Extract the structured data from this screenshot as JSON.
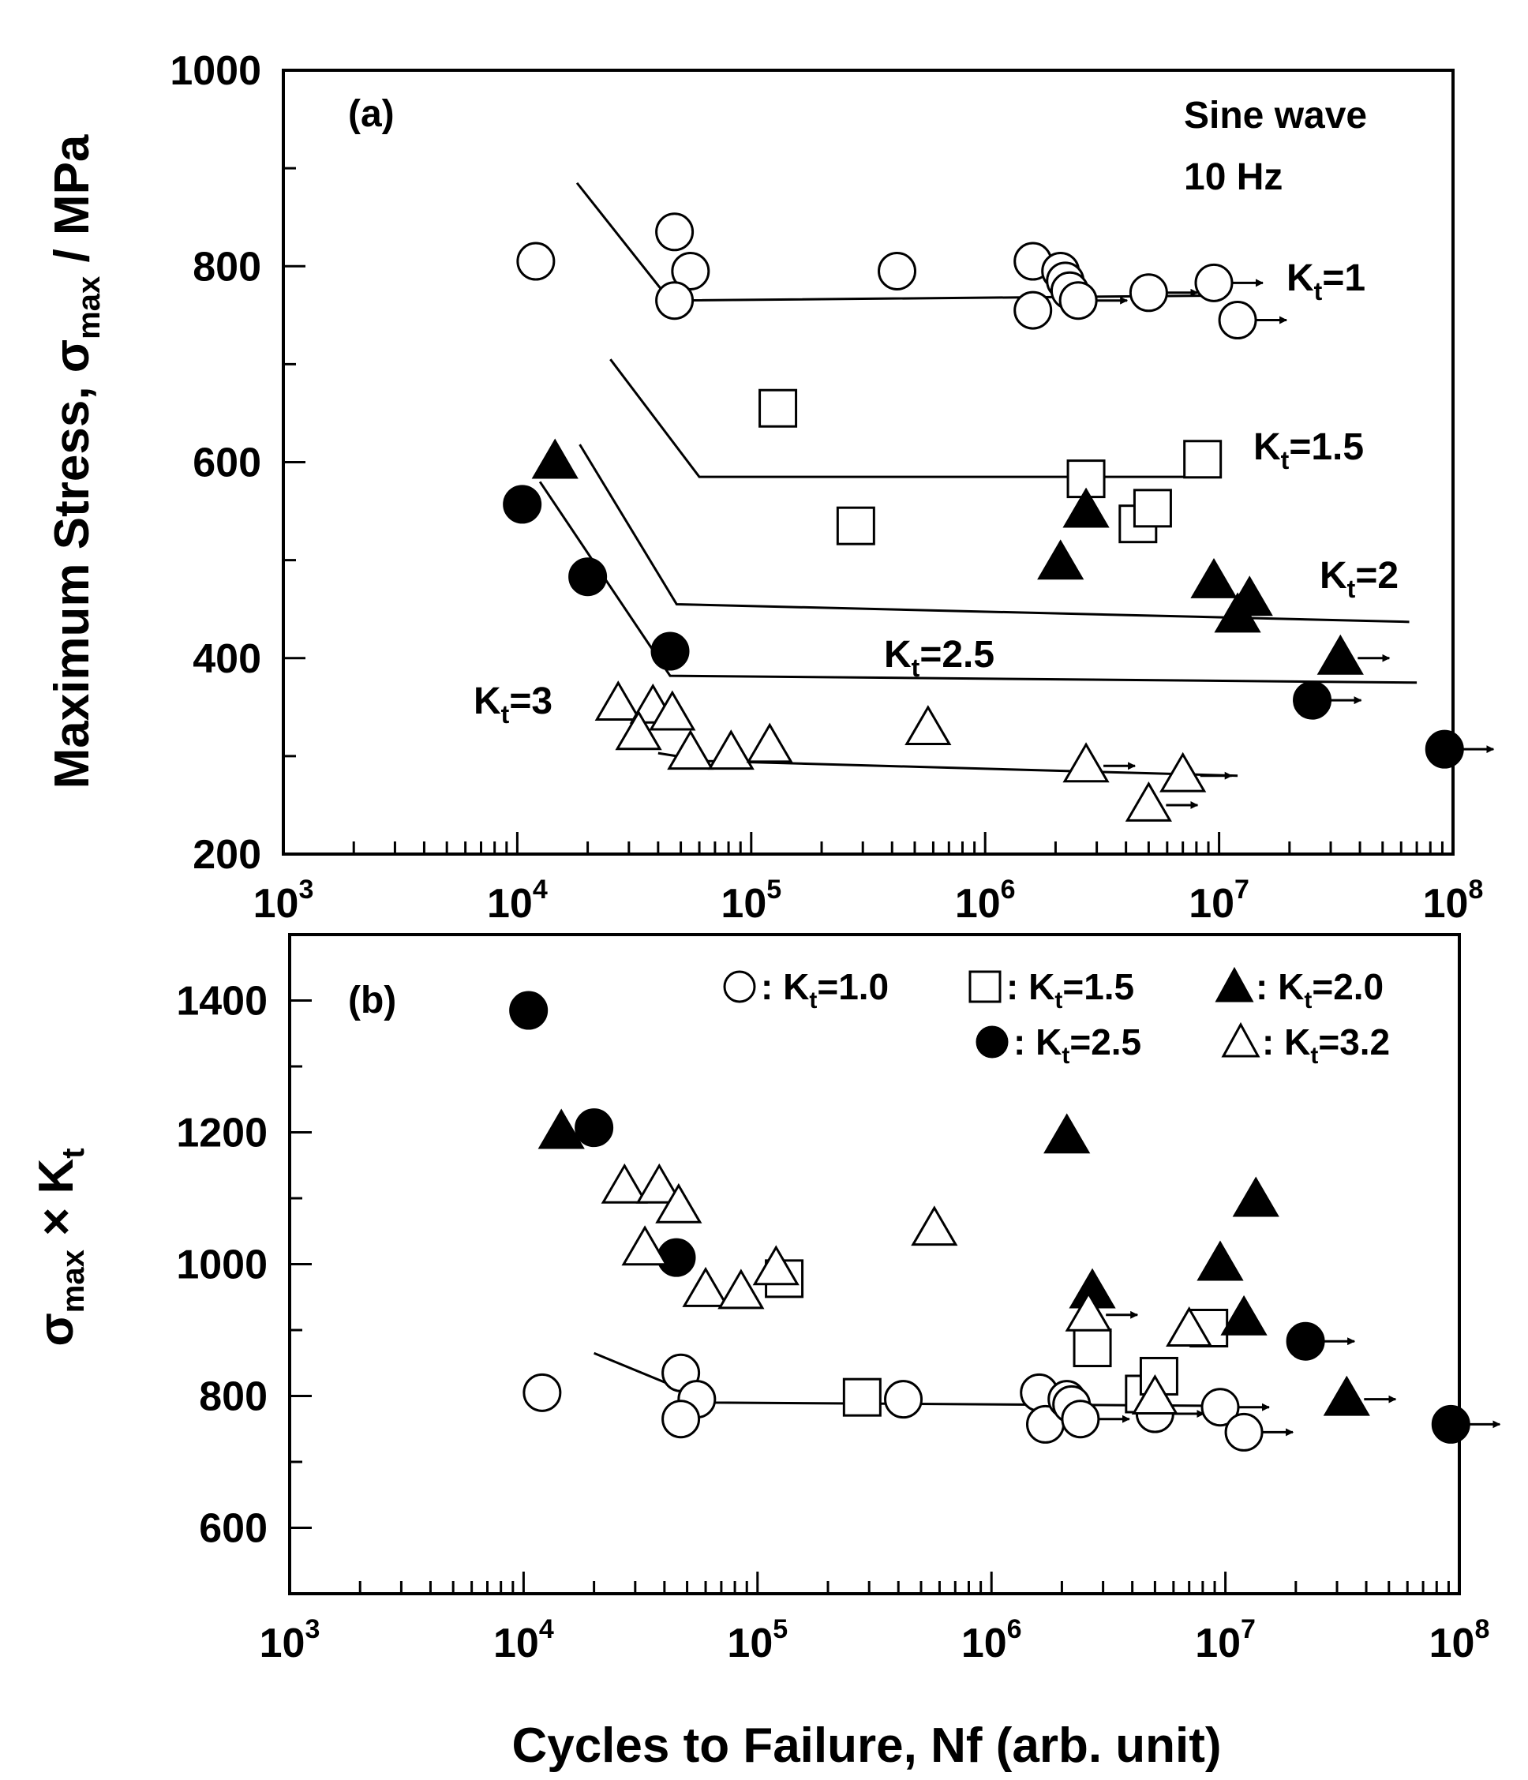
{
  "chart_data": [
    {
      "type": "scatter",
      "panel": "(a)",
      "title": "",
      "xlabel": "Cycles to Failure, Nf (arb. unit)",
      "ylabel": {
        "main": "Maximum Stress, σ",
        "sub": "max",
        "tail": " / MPa"
      },
      "xscale": "log",
      "xlim": [
        1000,
        100000000
      ],
      "ylim": [
        200,
        1000
      ],
      "yticks": [
        200,
        400,
        600,
        800,
        1000
      ],
      "yticks_minor": [
        300,
        500,
        700,
        900
      ],
      "xticks": [
        {
          "base": "10",
          "exp": "3",
          "value": 1000
        },
        {
          "base": "10",
          "exp": "4",
          "value": 10000
        },
        {
          "base": "10",
          "exp": "5",
          "value": 100000
        },
        {
          "base": "10",
          "exp": "6",
          "value": 1000000
        },
        {
          "base": "10",
          "exp": "7",
          "value": 10000000
        },
        {
          "base": "10",
          "exp": "8",
          "value": 100000000
        }
      ],
      "annotations": {
        "condition_line1": "Sine wave",
        "condition_line2": "10 Hz",
        "kt_1": {
          "base": "K",
          "sub": "t",
          "tail": "=1"
        },
        "kt_15": {
          "base": "K",
          "sub": "t",
          "tail": "=1.5"
        },
        "kt_2": {
          "base": "K",
          "sub": "t",
          "tail": "=2"
        },
        "kt_25": {
          "base": "K",
          "sub": "t",
          "tail": "=2.5"
        },
        "kt_3": {
          "base": "K",
          "sub": "t",
          "tail": "=3"
        }
      },
      "series": [
        {
          "name": "Kt=1",
          "marker": "open-circle",
          "points": [
            [
              12000,
              805
            ],
            [
              47000,
              835
            ],
            [
              55000,
              795
            ],
            [
              47000,
              765
            ],
            [
              420000,
              795
            ],
            [
              1600000,
              805
            ],
            [
              2100000,
              795
            ],
            [
              2200000,
              785
            ],
            [
              1600000,
              755
            ],
            [
              2300000,
              775
            ],
            [
              2500000,
              765,
              "runout"
            ],
            [
              5000000,
              773,
              "runout"
            ],
            [
              9500000,
              783,
              "runout"
            ],
            [
              12000000,
              745,
              "runout"
            ]
          ]
        },
        {
          "name": "Kt=1.5",
          "marker": "open-square",
          "points": [
            [
              130000,
              655
            ],
            [
              280000,
              535
            ],
            [
              2700000,
              583
            ],
            [
              8500000,
              603
            ],
            [
              4500000,
              537
            ],
            [
              5200000,
              553
            ]
          ]
        },
        {
          "name": "Kt=2",
          "marker": "filled-triangle",
          "points": [
            [
              14500,
              600
            ],
            [
              2100000,
              497
            ],
            [
              2700000,
              550
            ],
            [
              9500000,
              478
            ],
            [
              13500000,
              460
            ],
            [
              12000000,
              443
            ],
            [
              33000000,
              400,
              "runout"
            ]
          ]
        },
        {
          "name": "Kt=2.5",
          "marker": "filled-circle",
          "points": [
            [
              10500,
              557
            ],
            [
              20000,
              483
            ],
            [
              45000,
              407
            ],
            [
              25000000,
              357,
              "runout"
            ],
            [
              92000000,
              307,
              "runout"
            ]
          ]
        },
        {
          "name": "Kt=3",
          "marker": "open-triangle",
          "points": [
            [
              27000,
              353
            ],
            [
              38000,
              350
            ],
            [
              46000,
              343
            ],
            [
              33000,
              323
            ],
            [
              55000,
              303
            ],
            [
              82000,
              303
            ],
            [
              120000,
              310
            ],
            [
              570000,
              328
            ],
            [
              2700000,
              290,
              "runout"
            ],
            [
              5000000,
              250,
              "runout"
            ],
            [
              7000000,
              280,
              "runout"
            ]
          ]
        }
      ],
      "fit_lines": [
        {
          "name": "Kt=1",
          "points": [
            [
              18000,
              885
            ],
            [
              45000,
              765
            ],
            [
              10000000,
              770
            ]
          ]
        },
        {
          "name": "Kt=1.5",
          "points": [
            [
              25000,
              705
            ],
            [
              60000,
              585
            ],
            [
              9500000,
              585
            ]
          ]
        },
        {
          "name": "Kt=2",
          "points": [
            [
              18500,
              618
            ],
            [
              48000,
              455
            ],
            [
              65000000,
              437
            ]
          ]
        },
        {
          "name": "Kt=2.5",
          "points": [
            [
              12500,
              580
            ],
            [
              45000,
              382
            ],
            [
              70000000,
              375
            ]
          ]
        },
        {
          "name": "Kt=3",
          "points": [
            [
              40000,
              303
            ],
            [
              65000,
              295
            ],
            [
              12000000,
              280
            ]
          ]
        }
      ]
    },
    {
      "type": "scatter",
      "panel": "(b)",
      "title": "",
      "xlabel": "Cycles to Failure, Nf (arb. unit)",
      "ylabel": {
        "main": "σ",
        "sub": "max",
        "tail": " × K",
        "sub2": "t"
      },
      "xscale": "log",
      "xlim": [
        1000,
        100000000
      ],
      "ylim": [
        500,
        1500
      ],
      "yticks": [
        600,
        800,
        1000,
        1200,
        1400
      ],
      "yticks_minor": [
        500,
        700,
        900,
        1100,
        1300,
        1500
      ],
      "xticks": [
        {
          "base": "10",
          "exp": "3",
          "value": 1000
        },
        {
          "base": "10",
          "exp": "4",
          "value": 10000
        },
        {
          "base": "10",
          "exp": "5",
          "value": 100000
        },
        {
          "base": "10",
          "exp": "6",
          "value": 1000000
        },
        {
          "base": "10",
          "exp": "7",
          "value": 10000000
        },
        {
          "base": "10",
          "exp": "8",
          "value": 100000000
        }
      ],
      "legend": [
        {
          "marker": "open-circle",
          "prefix": ": K",
          "sub": "t",
          "value": "=1.0"
        },
        {
          "marker": "open-square",
          "prefix": ": K",
          "sub": "t",
          "value": "=1.5"
        },
        {
          "marker": "filled-triangle",
          "prefix": ": K",
          "sub": "t",
          "value": "=2.0"
        },
        {
          "marker": "filled-circle",
          "prefix": ": K",
          "sub": "t",
          "value": "=2.5"
        },
        {
          "marker": "open-triangle",
          "prefix": ": K",
          "sub": "t",
          "value": "=3.2"
        }
      ],
      "series": [
        {
          "name": "Kt=1.0",
          "marker": "open-circle",
          "points": [
            [
              12000,
              805
            ],
            [
              47000,
              835
            ],
            [
              55000,
              795
            ],
            [
              47000,
              765
            ],
            [
              420000,
              795
            ],
            [
              1600000,
              805
            ],
            [
              1700000,
              757
            ],
            [
              2100000,
              795
            ],
            [
              2200000,
              787
            ],
            [
              2400000,
              765,
              "runout"
            ],
            [
              5000000,
              773,
              "runout"
            ],
            [
              9500000,
              783,
              "runout"
            ],
            [
              12000000,
              745,
              "runout"
            ]
          ]
        },
        {
          "name": "Kt=1.5",
          "marker": "open-square",
          "points": [
            [
              130000,
              978
            ],
            [
              280000,
              798
            ],
            [
              2700000,
              873
            ],
            [
              8500000,
              903
            ],
            [
              4500000,
              803
            ],
            [
              5200000,
              830
            ]
          ]
        },
        {
          "name": "Kt=2.0",
          "marker": "filled-triangle",
          "points": [
            [
              14500,
              1200
            ],
            [
              2100000,
              1193
            ],
            [
              2700000,
              958
            ],
            [
              9500000,
              1000
            ],
            [
              13500000,
              1097
            ],
            [
              12000000,
              917
            ],
            [
              33000000,
              795,
              "runout"
            ]
          ]
        },
        {
          "name": "Kt=2.5",
          "marker": "filled-circle",
          "points": [
            [
              10500,
              1385
            ],
            [
              20000,
              1207
            ],
            [
              45000,
              1010
            ],
            [
              22000000,
              883,
              "runout"
            ],
            [
              92000000,
              757,
              "runout"
            ]
          ]
        },
        {
          "name": "Kt=3.2",
          "marker": "open-triangle",
          "points": [
            [
              27000,
              1117
            ],
            [
              38000,
              1117
            ],
            [
              46000,
              1087
            ],
            [
              33000,
              1023
            ],
            [
              60000,
              960
            ],
            [
              85000,
              957
            ],
            [
              120000,
              993
            ],
            [
              570000,
              1053
            ],
            [
              2600000,
              923,
              "runout"
            ],
            [
              5000000,
              797
            ],
            [
              7000000,
              900
            ]
          ]
        }
      ],
      "fit_lines": [
        {
          "name": "Kt=1.0",
          "points": [
            [
              20000,
              865
            ],
            [
              65000,
              790
            ],
            [
              10000000,
              785
            ]
          ]
        }
      ]
    }
  ]
}
